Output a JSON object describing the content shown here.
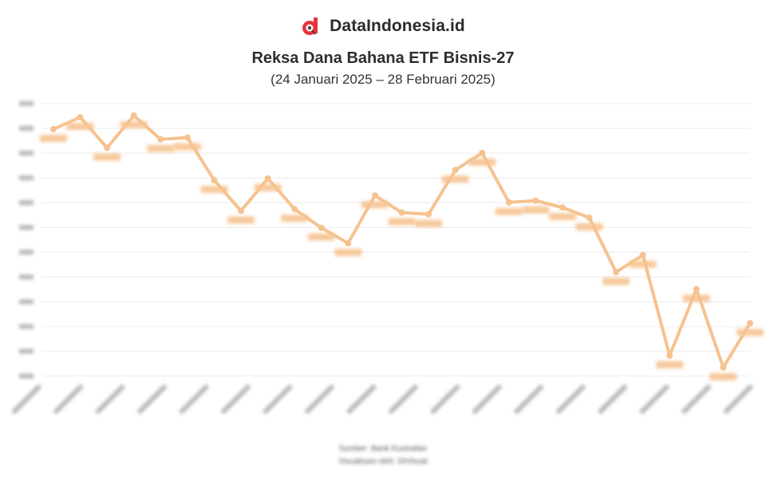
{
  "brand": {
    "name": "DataIndonesia.id",
    "logo_icon": "dataindonesia-logo-icon",
    "logo_color": "#e8333c"
  },
  "chart_data": {
    "type": "line",
    "title": "Reksa Dana Bahana ETF Bisnis-27",
    "subtitle": "(24 Januari 2025 – 28 Februari 2025)",
    "xlabel": "",
    "ylabel": "",
    "series": [
      {
        "color": "#f6c28f",
        "values": [
          3.75,
          3.82,
          3.64,
          3.83,
          3.69,
          3.7,
          3.45,
          3.27,
          3.46,
          3.28,
          3.17,
          3.08,
          3.36,
          3.26,
          3.25,
          3.51,
          3.61,
          3.32,
          3.33,
          3.29,
          3.23,
          2.91,
          3.01,
          2.42,
          2.81,
          2.35,
          2.61
        ]
      }
    ],
    "y_tick_count": 12,
    "x_tick_count": 18,
    "grid": true,
    "legend": "none"
  },
  "footer": {
    "source": "Sumber: Bank Kustodian",
    "visualization": "Visualisasi oleh: DIVisual"
  }
}
